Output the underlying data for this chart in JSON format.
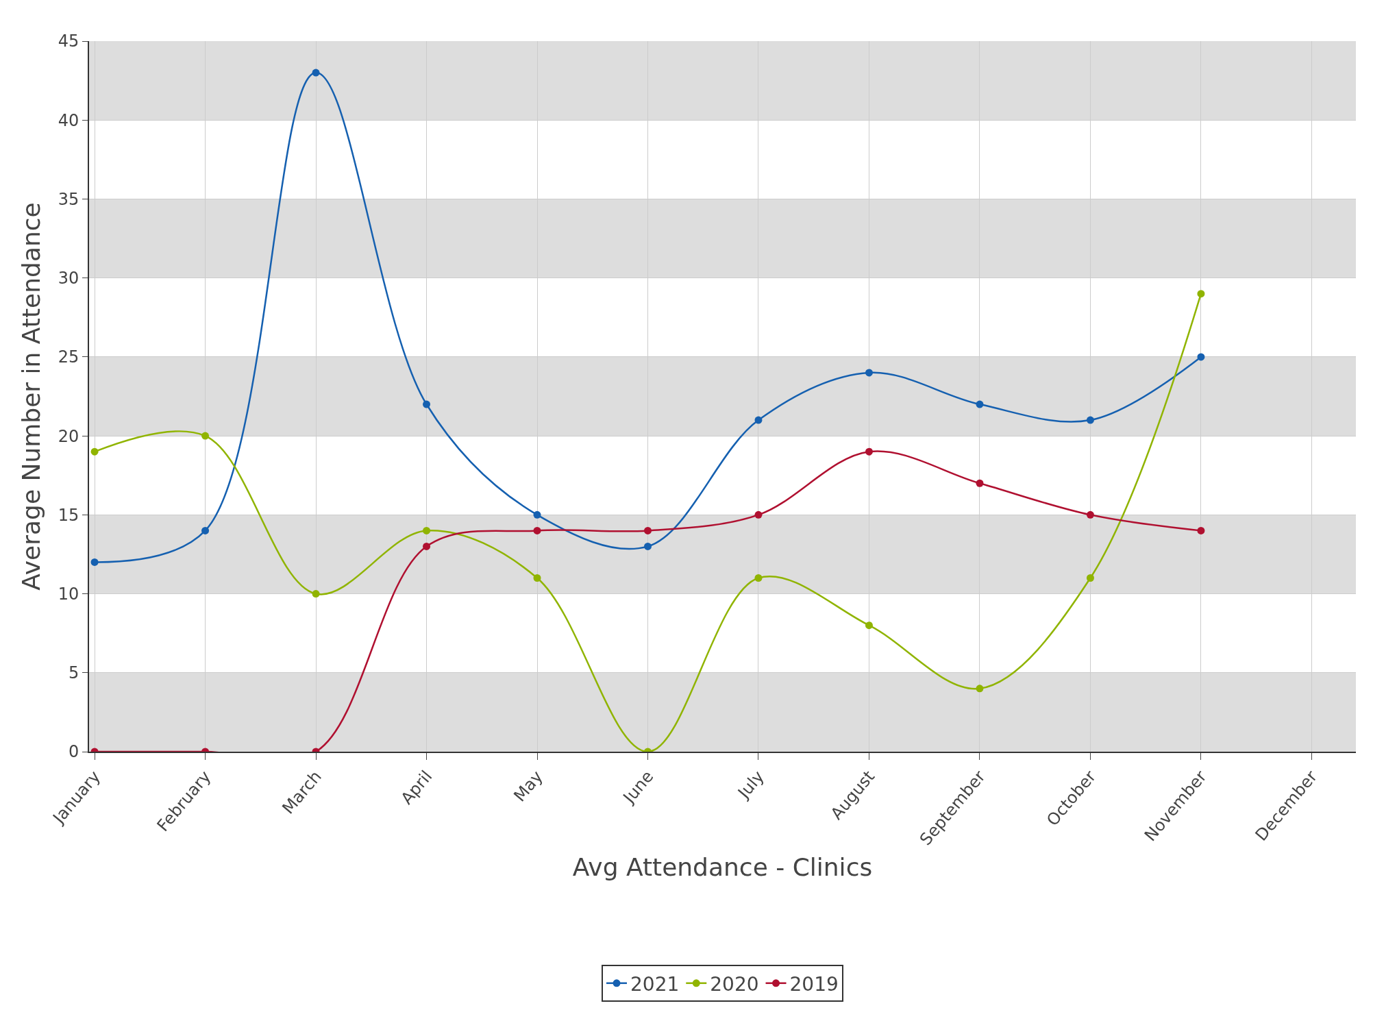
{
  "chart_data": {
    "type": "line",
    "categories": [
      "January",
      "February",
      "March",
      "April",
      "May",
      "June",
      "July",
      "August",
      "September",
      "October",
      "November",
      "December"
    ],
    "series": [
      {
        "name": "2021",
        "color": "#1560b0",
        "values": [
          12,
          14,
          43,
          22,
          15,
          13,
          21,
          24,
          22,
          21,
          25,
          null
        ]
      },
      {
        "name": "2020",
        "color": "#90b400",
        "values": [
          19,
          20,
          10,
          14,
          11,
          0,
          11,
          8,
          4,
          11,
          29,
          null
        ]
      },
      {
        "name": "2019",
        "color": "#b01030",
        "values": [
          0,
          0,
          0,
          13,
          14,
          14,
          15,
          19,
          17,
          15,
          14,
          null
        ]
      }
    ],
    "ylabel": "Average Number in Attendance",
    "xlabel": "Avg Attendance - Clinics",
    "ylim": [
      0,
      45
    ],
    "yticks": [
      0,
      5,
      10,
      15,
      20,
      25,
      30,
      35,
      40,
      45
    ],
    "bands": [
      {
        "axis": "y",
        "from": 0,
        "to": 5,
        "color": "#dddddd"
      },
      {
        "axis": "y",
        "from": 10,
        "to": 15,
        "color": "#dddddd"
      },
      {
        "axis": "y",
        "from": 20,
        "to": 25,
        "color": "#dddddd"
      },
      {
        "axis": "y",
        "from": 30,
        "to": 35,
        "color": "#dddddd"
      },
      {
        "axis": "y",
        "from": 40,
        "to": 45,
        "color": "#dddddd"
      }
    ],
    "grid": true,
    "legend": "bottom",
    "marker": "circle",
    "line_style": "solid"
  }
}
